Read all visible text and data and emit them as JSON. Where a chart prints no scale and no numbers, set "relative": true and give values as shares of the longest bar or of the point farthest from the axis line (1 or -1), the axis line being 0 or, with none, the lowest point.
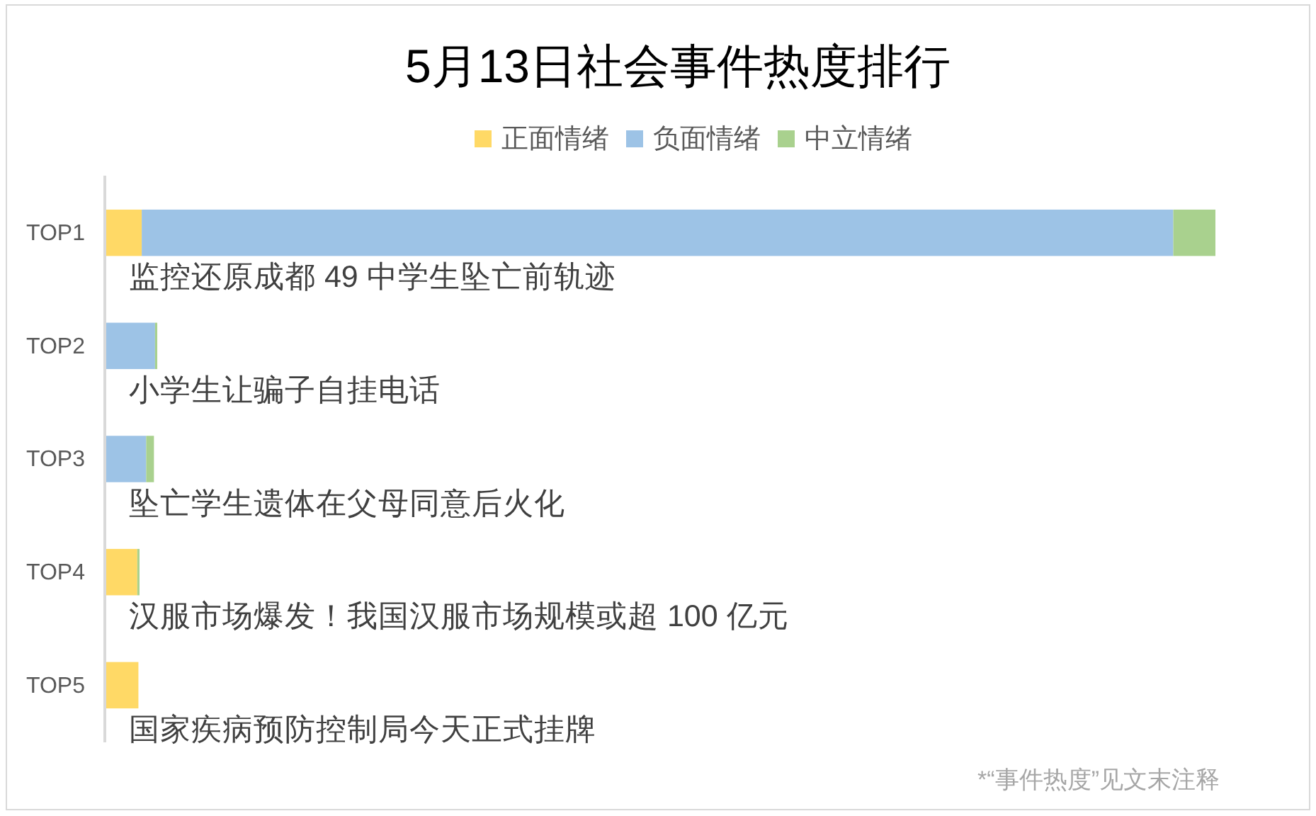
{
  "chart_data": {
    "type": "bar",
    "orientation": "horizontal",
    "stacked": true,
    "relative": true,
    "title": "5月13日社会事件热度排行",
    "legend": "top",
    "categories": [
      "TOP1",
      "TOP2",
      "TOP3",
      "TOP4",
      "TOP5"
    ],
    "series": [
      {
        "name": "正面情绪",
        "color": "#ffd966",
        "values": [
          0.032,
          0,
          0,
          0.028,
          0.029
        ]
      },
      {
        "name": "负面情绪",
        "color": "#9dc3e6",
        "values": [
          0.93,
          0.044,
          0.036,
          0,
          0
        ]
      },
      {
        "name": "中立情绪",
        "color": "#a9d18e",
        "values": [
          0.038,
          0.002,
          0.007,
          0.002,
          0
        ]
      }
    ],
    "annotations": [
      "监控还原成都 49 中学生坠亡前轨迹",
      "小学生让骗子自挂电话",
      "坠亡学生遗体在父母同意后火化",
      "汉服市场爆发！我国汉服市场规模或超 100 亿元",
      "国家疾病预防控制局今天正式挂牌",
      "*“事件热度”见文末注释"
    ]
  }
}
